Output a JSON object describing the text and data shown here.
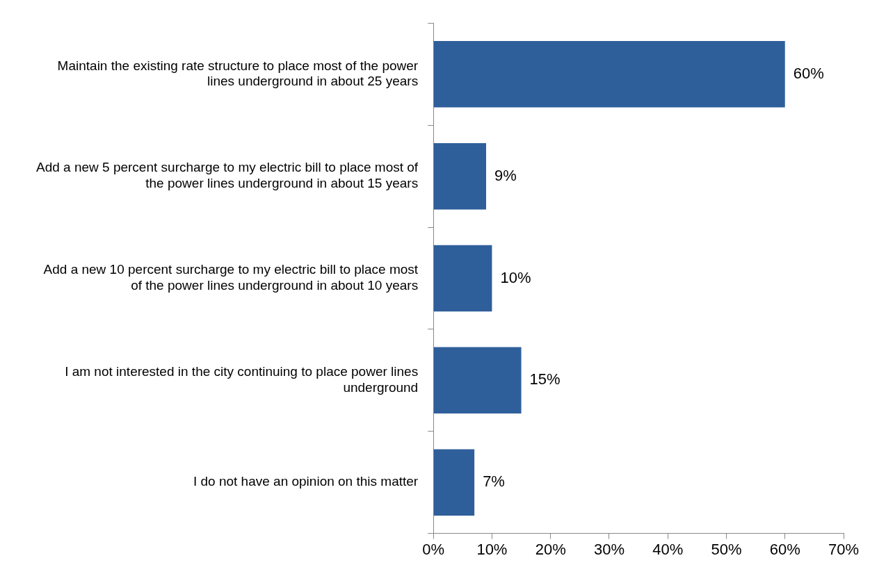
{
  "chart_data": {
    "type": "bar",
    "orientation": "horizontal",
    "categories": [
      "Maintain the existing rate structure to place most of the power lines underground in about 25 years",
      "Add a new 5 percent surcharge to my electric bill to place most of the power lines underground in about 15 years",
      "Add a new 10 percent surcharge to my electric bill to place most of the power lines underground in about 10 years",
      "I am not interested in the city continuing to place power lines underground",
      "I do not have an opinion on this matter"
    ],
    "values": [
      60,
      9,
      10,
      15,
      7
    ],
    "value_labels": [
      "60%",
      "9%",
      "10%",
      "15%",
      "7%"
    ],
    "color": "#2f5f9a",
    "xlim": [
      0,
      70
    ],
    "xticks": [
      {
        "value": 0,
        "label": "0%"
      },
      {
        "value": 10,
        "label": "10%"
      },
      {
        "value": 20,
        "label": "20%"
      },
      {
        "value": 30,
        "label": "30%"
      },
      {
        "value": 40,
        "label": "40%"
      },
      {
        "value": 50,
        "label": "50%"
      },
      {
        "value": 60,
        "label": "60%"
      },
      {
        "value": 70,
        "label": "70%"
      }
    ],
    "grid": false,
    "legend": false
  }
}
